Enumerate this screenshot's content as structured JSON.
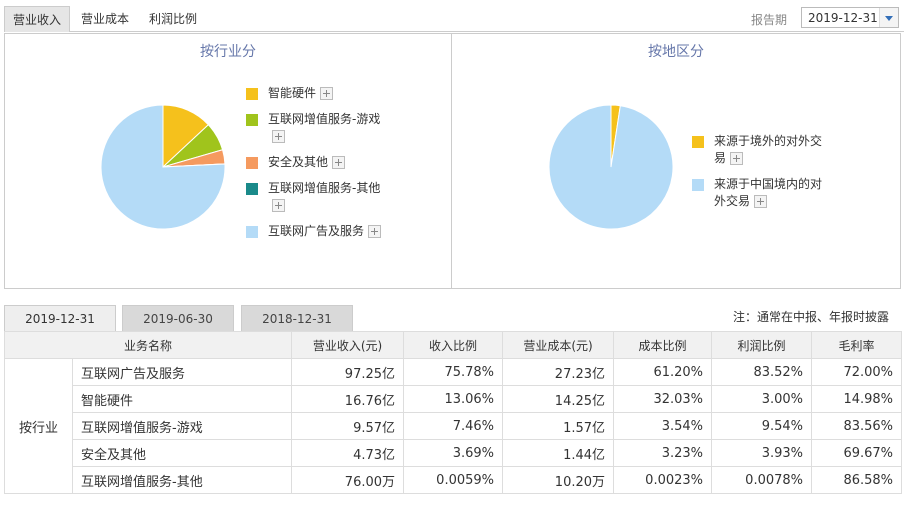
{
  "tabs": [
    "营业收入",
    "营业成本",
    "利润比例"
  ],
  "period": {
    "label": "报告期",
    "value": "2019-12-31"
  },
  "left_panel": {
    "title": "按行业分",
    "legend": [
      {
        "label": "智能硬件",
        "color": "#f5c11c"
      },
      {
        "label": "互联网增值服务-游戏",
        "color": "#a0c41c"
      },
      {
        "label": "安全及其他",
        "color": "#f59a5f"
      },
      {
        "label": "互联网增值服务-其他",
        "color": "#1a8a8a"
      },
      {
        "label": "互联网广告及服务",
        "color": "#b4dbf7"
      }
    ]
  },
  "right_panel": {
    "title": "按地区分",
    "legend": [
      {
        "label": "来源于境外的对外交易",
        "color": "#f5c11c"
      },
      {
        "label": "来源于中国境内的对外交易",
        "color": "#b4dbf7"
      }
    ]
  },
  "chart_data": [
    {
      "type": "pie",
      "title": "按行业分",
      "slices": [
        {
          "name": "智能硬件",
          "value": 13.06
        },
        {
          "name": "互联网增值服务-游戏",
          "value": 7.46
        },
        {
          "name": "安全及其他",
          "value": 3.69
        },
        {
          "name": "互联网增值服务-其他",
          "value": 0.0059
        },
        {
          "name": "互联网广告及服务",
          "value": 75.78
        }
      ]
    },
    {
      "type": "pie",
      "title": "按地区分",
      "slices": [
        {
          "name": "来源于境外的对外交易",
          "value": 2.4
        },
        {
          "name": "来源于中国境内的对外交易",
          "value": 97.6
        }
      ]
    }
  ],
  "date_tabs": [
    "2019-12-31",
    "2019-06-30",
    "2018-12-31"
  ],
  "note": "注：通常在中报、年报时披露",
  "table": {
    "headers": [
      "业务名称",
      "营业收入(元)",
      "收入比例",
      "营业成本(元)",
      "成本比例",
      "利润比例",
      "毛利率"
    ],
    "group": "按行业",
    "rows": [
      [
        "互联网广告及服务",
        "97.25亿",
        "75.78%",
        "27.23亿",
        "61.20%",
        "83.52%",
        "72.00%"
      ],
      [
        "智能硬件",
        "16.76亿",
        "13.06%",
        "14.25亿",
        "32.03%",
        "3.00%",
        "14.98%"
      ],
      [
        "互联网增值服务-游戏",
        "9.57亿",
        "7.46%",
        "1.57亿",
        "3.54%",
        "9.54%",
        "83.56%"
      ],
      [
        "安全及其他",
        "4.73亿",
        "3.69%",
        "1.44亿",
        "3.23%",
        "3.93%",
        "69.67%"
      ],
      [
        "互联网增值服务-其他",
        "76.00万",
        "0.0059%",
        "10.20万",
        "0.0023%",
        "0.0078%",
        "86.58%"
      ]
    ]
  }
}
